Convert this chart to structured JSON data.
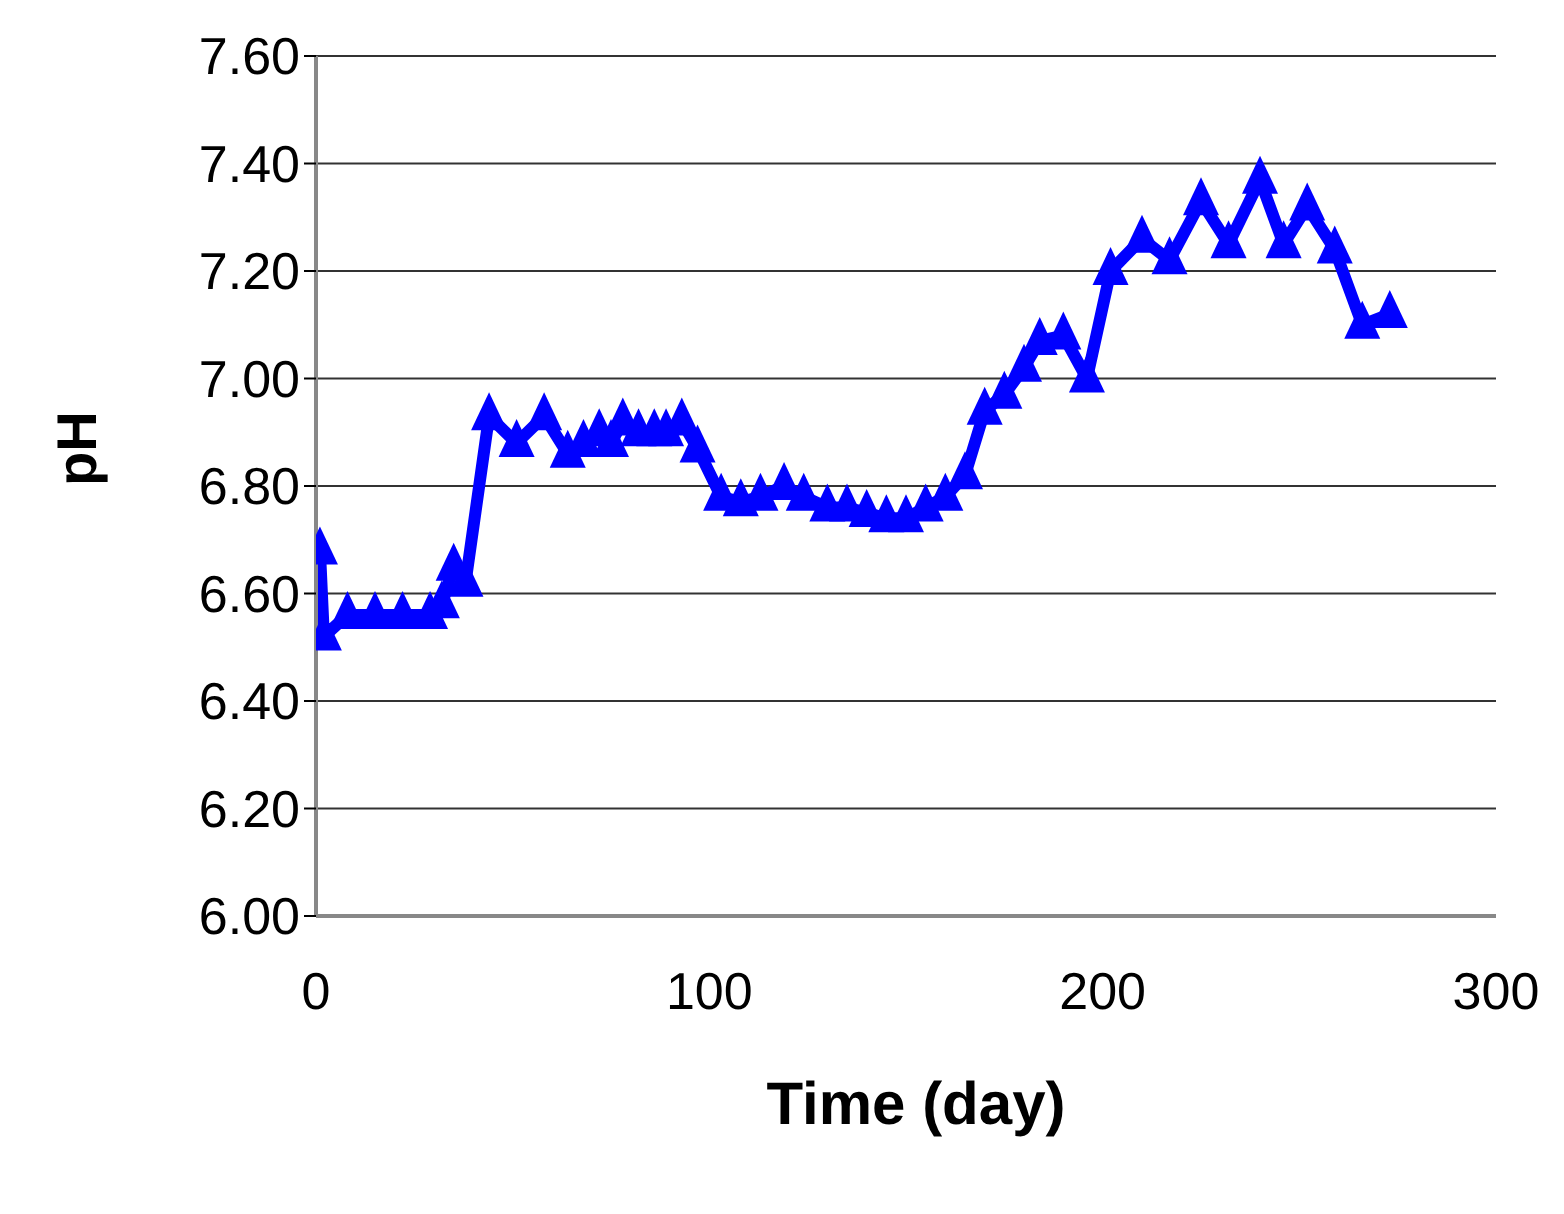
{
  "chart_data": {
    "type": "line",
    "xlabel": "Time (day)",
    "ylabel": "pH",
    "series": [
      {
        "color": "#0000ff",
        "x": [
          1,
          2,
          8,
          15,
          22,
          29,
          32,
          35,
          38,
          44,
          51,
          58,
          64,
          68,
          72,
          75,
          78,
          82,
          86,
          89,
          93,
          97,
          103,
          108,
          113,
          119,
          124,
          130,
          135,
          140,
          145,
          150,
          155,
          160,
          165,
          170,
          175,
          180,
          184,
          190,
          196,
          202,
          210,
          217,
          225,
          232,
          240,
          246,
          252,
          259,
          266,
          273
        ],
        "values": [
          6.68,
          6.52,
          6.56,
          6.56,
          6.56,
          6.56,
          6.58,
          6.65,
          6.62,
          6.93,
          6.88,
          6.93,
          6.86,
          6.88,
          6.9,
          6.88,
          6.92,
          6.9,
          6.9,
          6.9,
          6.92,
          6.87,
          6.78,
          6.77,
          6.78,
          6.8,
          6.78,
          6.76,
          6.76,
          6.75,
          6.74,
          6.74,
          6.76,
          6.78,
          6.82,
          6.94,
          6.97,
          7.02,
          7.07,
          7.08,
          7,
          7.2,
          7.26,
          7.22,
          7.33,
          7.25,
          7.37,
          7.25,
          7.32,
          7.24,
          7.1,
          7.12
        ]
      }
    ],
    "xlim": [
      0,
      300
    ],
    "xticks": [
      0,
      100,
      200,
      300
    ],
    "ylim": [
      6,
      7.6
    ],
    "yticks": [
      {
        "value": 6,
        "label": "6.00"
      },
      {
        "value": 6.2,
        "label": "6.20"
      },
      {
        "value": 6.4,
        "label": "6.40"
      },
      {
        "value": 6.6,
        "label": "6.60"
      },
      {
        "value": 6.8,
        "label": "6.80"
      },
      {
        "value": 7,
        "label": "7.00"
      },
      {
        "value": 7.2,
        "label": "7.20"
      },
      {
        "value": 7.4,
        "label": "7.40"
      },
      {
        "value": 7.6,
        "label": "7.60"
      }
    ],
    "grid": "y",
    "marker": "triangle",
    "line_style": "solid"
  }
}
